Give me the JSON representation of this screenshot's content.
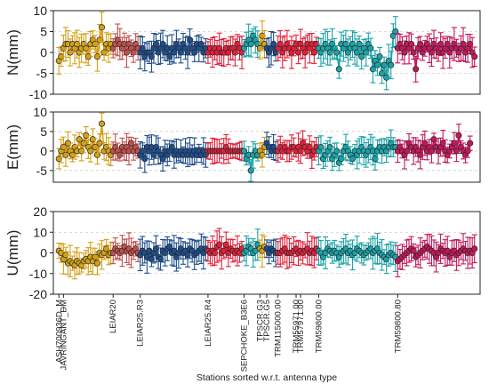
{
  "chart_data": {
    "type": "scatter",
    "xlabel": "Stations sorted w.r.t. antenna type",
    "station_count": 185,
    "palette": [
      "#d4a017",
      "#c0504d",
      "#1f4e8c",
      "#e0203a",
      "#1aa3a8",
      "#c2185b"
    ],
    "groups": [
      {
        "label": "ASH700936D_M",
        "index": 0,
        "end": 1,
        "color_idx": 0
      },
      {
        "label": "JAVRINGANT_DM",
        "index": 2,
        "end": 23,
        "color_idx": 0
      },
      {
        "label": "LEIAR20",
        "index": 24,
        "end": 35,
        "color_idx": 1
      },
      {
        "label": "LEIAR25.R3",
        "index": 36,
        "end": 65,
        "color_idx": 2
      },
      {
        "label": "LEIAR25.R4",
        "index": 66,
        "end": 81,
        "color_idx": 3
      },
      {
        "label": "SEPCHOKE_B3E6",
        "index": 82,
        "end": 88,
        "color_idx": 4
      },
      {
        "label": "TPSCR.G3",
        "index": 89,
        "end": 91,
        "color_idx": 0
      },
      {
        "label": "TPSCR.G5",
        "index": 92,
        "end": 96,
        "color_idx": 2
      },
      {
        "label": "TRM115000.00",
        "index": 97,
        "end": 104,
        "color_idx": 3
      },
      {
        "label": "TRM55971.00",
        "index": 105,
        "end": 106,
        "color_idx": 3
      },
      {
        "label": "TRM57971.00",
        "index": 107,
        "end": 114,
        "color_idx": 3
      },
      {
        "label": "TRM59800.00",
        "index": 115,
        "end": 149,
        "color_idx": 4
      },
      {
        "label": "TRM59800.80",
        "index": 150,
        "end": 184,
        "color_idx": 5
      }
    ],
    "panels": [
      {
        "ylabel": "N(mm)",
        "ylim": [
          -10,
          10
        ],
        "yticks": [
          -10,
          -5,
          0,
          5,
          10
        ],
        "values": [
          -2,
          -1,
          1,
          2,
          2,
          0,
          2,
          1,
          2,
          0,
          1,
          2,
          1,
          -1,
          2,
          3,
          2,
          -1,
          3,
          6,
          0,
          2,
          1,
          2,
          1,
          2,
          3,
          2,
          1,
          2,
          0,
          2,
          1,
          0,
          2,
          1,
          0,
          1,
          -1,
          0,
          0,
          -1,
          1,
          2,
          0,
          1,
          2,
          0,
          1,
          -1,
          1,
          0,
          2,
          1,
          0,
          2,
          1,
          0,
          3,
          1,
          0,
          2,
          1,
          2,
          0,
          1,
          0,
          1,
          0,
          1,
          0,
          1,
          0,
          0,
          1,
          0,
          1,
          1,
          0,
          2,
          1,
          0,
          1,
          2,
          3,
          2,
          4,
          3,
          2,
          1,
          4,
          2,
          1,
          0,
          1,
          2,
          0,
          1,
          2,
          0,
          1,
          2,
          1,
          0,
          1,
          2,
          0,
          2,
          1,
          0,
          2,
          1,
          2,
          0,
          2,
          1,
          0,
          1,
          2,
          1,
          0,
          2,
          1,
          0,
          -4,
          2,
          1,
          2,
          0,
          1,
          2,
          1,
          0,
          2,
          -1,
          1,
          0,
          2,
          1,
          -4,
          -2,
          -3,
          -1,
          -5,
          -3,
          -6,
          -2,
          -3,
          4,
          5,
          1,
          2,
          1,
          0,
          2,
          1,
          2,
          0,
          -4,
          1,
          2,
          0,
          1,
          2,
          1,
          0,
          2,
          1,
          0,
          2,
          0,
          1,
          2,
          0,
          1,
          2,
          1,
          0,
          1,
          2,
          0,
          1,
          2,
          0,
          -1
        ]
      },
      {
        "ylabel": "E(mm)",
        "ylim": [
          -8,
          10
        ],
        "yticks": [
          -5,
          0,
          5,
          10
        ],
        "values": [
          -2,
          0,
          1,
          -1,
          2,
          0,
          -1,
          1,
          0,
          3,
          0,
          2,
          4,
          1,
          0,
          3,
          1,
          -1,
          2,
          7,
          0,
          1,
          0,
          -1,
          0,
          1,
          0,
          -1,
          1,
          0,
          1,
          0,
          2,
          0,
          1,
          0,
          -1,
          0,
          -2,
          1,
          0,
          1,
          -1,
          1,
          0,
          -1,
          -2,
          0,
          -1,
          0,
          1,
          -1,
          0,
          -1,
          0,
          -1,
          0,
          -1,
          0,
          -1,
          0,
          -1,
          0,
          -1,
          0,
          -1,
          0,
          0,
          0,
          0,
          0,
          0,
          0,
          0,
          1,
          0,
          0,
          0,
          0,
          0,
          0,
          0,
          0,
          -2,
          -1,
          -5,
          -1,
          0,
          -1,
          0,
          -1,
          1,
          2,
          1,
          0,
          1,
          0,
          0,
          1,
          0,
          1,
          0,
          0,
          1,
          1,
          0,
          1,
          0,
          2,
          1,
          0,
          1,
          -1,
          0,
          1,
          0,
          1,
          -2,
          -1,
          0,
          1,
          -2,
          -1,
          0,
          -3,
          -2,
          0,
          1,
          0,
          -1,
          -2,
          0,
          -1,
          0,
          1,
          0,
          -1,
          0,
          1,
          0,
          -2,
          0,
          1,
          0,
          1,
          0,
          1,
          2,
          1,
          1,
          0,
          1,
          0,
          -1,
          0,
          2,
          1,
          0,
          1,
          0,
          -1,
          1,
          2,
          0,
          1,
          0,
          3,
          1,
          0,
          1,
          2,
          0,
          -1,
          0,
          1,
          2,
          0,
          4,
          1,
          0,
          -1,
          0,
          2
        ]
      },
      {
        "ylabel": "U(mm)",
        "ylim": [
          -20,
          20
        ],
        "yticks": [
          -20,
          -10,
          0,
          10,
          20
        ],
        "values": [
          1,
          0,
          -3,
          -1,
          -5,
          -4,
          -5,
          -6,
          -4,
          -5,
          -6,
          -4,
          -3,
          -4,
          -2,
          -4,
          -2,
          -5,
          0,
          -1,
          0,
          2,
          -1,
          0,
          0,
          2,
          1,
          0,
          1,
          3,
          1,
          2,
          0,
          1,
          2,
          0,
          -1,
          1,
          0,
          -2,
          1,
          -3,
          0,
          2,
          -2,
          -3,
          1,
          0,
          2,
          3,
          0,
          1,
          -2,
          0,
          2,
          0,
          1,
          -1,
          2,
          1,
          -1,
          0,
          1,
          2,
          0,
          2,
          1,
          0,
          1,
          0,
          3,
          4,
          0,
          1,
          4,
          0,
          2,
          1,
          0,
          1,
          0,
          2,
          0,
          1,
          3,
          2,
          0,
          1,
          4,
          2,
          1,
          3,
          2,
          0,
          2,
          1,
          0,
          0,
          0,
          1,
          2,
          0,
          0,
          0,
          1,
          2,
          0,
          1,
          0,
          1,
          2,
          0,
          1,
          0,
          2,
          1,
          0,
          -2,
          0,
          2,
          1,
          0,
          1,
          0,
          -2,
          0,
          1,
          2,
          0,
          1,
          -1,
          0,
          2,
          1,
          0,
          -1,
          0,
          1,
          2,
          0,
          1,
          2,
          0,
          -1,
          -2,
          -3,
          -1,
          0,
          -1,
          -2,
          -4,
          -3,
          -2,
          -1,
          0,
          1,
          2,
          1,
          -2,
          -1,
          0,
          1,
          2,
          3,
          2,
          1,
          0,
          -2,
          0,
          2,
          1,
          0,
          1,
          -2,
          0,
          1,
          -1,
          0,
          1,
          2,
          1,
          0,
          1,
          0,
          2
        ]
      }
    ]
  }
}
